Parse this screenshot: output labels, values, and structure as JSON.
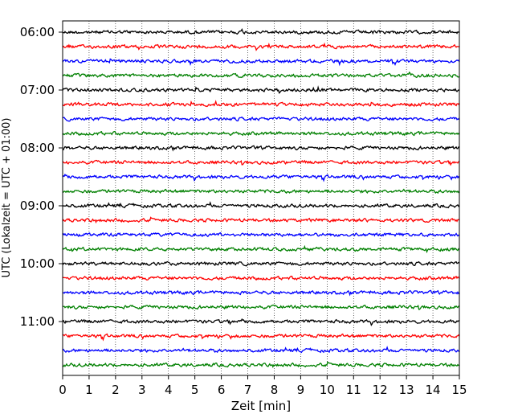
{
  "chart_data": {
    "type": "line",
    "title": "",
    "xlabel": "Zeit  [min]",
    "ylabel": "UTC (Lokalzeit = UTC + 01:00)",
    "xlim": [
      0,
      15
    ],
    "x_ticks": [
      "0",
      "1",
      "2",
      "3",
      "4",
      "5",
      "6",
      "7",
      "8",
      "9",
      "10",
      "11",
      "12",
      "13",
      "14",
      "15"
    ],
    "y_ticks": [
      "06:00",
      "07:00",
      "08:00",
      "09:00",
      "10:00",
      "11:00"
    ],
    "grid": "vertical dotted at each minute",
    "legend": "none",
    "trace_start": "06:00",
    "trace_interval_minutes": 15,
    "trace_count": 24,
    "trace_colors": [
      "#000000",
      "#ff0000",
      "#0000ff",
      "#008000"
    ]
  }
}
